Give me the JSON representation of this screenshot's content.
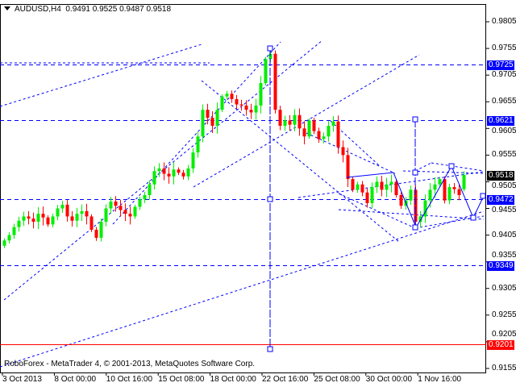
{
  "header": {
    "symbol": "AUDUSD,H4",
    "ohlc_text": "0.9491 0.9525 0.9487 0.9518"
  },
  "copyright": "RoboForex - MetaTrader 4, © 2001-2013, MetaQuotes Software Corp.",
  "colors": {
    "bull": "#00ee00",
    "bear": "#ff0000",
    "lines": "#0000ff",
    "support": "#ff0000",
    "current": "#000000"
  },
  "chart_data": {
    "type": "candlestick",
    "symbol": "AUDUSD",
    "timeframe": "H4",
    "ylim": [
      0.9145,
      0.983
    ],
    "y_ticks": [
      "0.9805",
      "0.9755",
      "0.9705",
      "0.9655",
      "0.9605",
      "0.9555",
      "0.9505",
      "0.9455",
      "0.9405",
      "0.9355",
      "0.9305",
      "0.9255",
      "0.9205",
      "0.9155"
    ],
    "x_ticks": [
      "3 Oct 2013",
      "8 Oct 00:00",
      "10 Oct 16:00",
      "15 Oct 08:00",
      "18 Oct 00:00",
      "22 Oct 16:00",
      "25 Oct 08:00",
      "30 Oct 00:00",
      "1 Nov 16:00"
    ],
    "last_candle": {
      "open": 0.9491,
      "high": 0.9525,
      "low": 0.9487,
      "close": 0.9518
    },
    "closes": [
      0.9395,
      0.9405,
      0.942,
      0.9432,
      0.944,
      0.9436,
      0.943,
      0.9445,
      0.9438,
      0.9425,
      0.944,
      0.9455,
      0.9462,
      0.944,
      0.9432,
      0.9445,
      0.945,
      0.944,
      0.9415,
      0.94,
      0.943,
      0.9455,
      0.9468,
      0.946,
      0.9452,
      0.9445,
      0.944,
      0.9458,
      0.9472,
      0.948,
      0.95,
      0.9525,
      0.953,
      0.952,
      0.9515,
      0.9528,
      0.9522,
      0.9515,
      0.953,
      0.956,
      0.959,
      0.964,
      0.9625,
      0.961,
      0.964,
      0.9665,
      0.967,
      0.966,
      0.965,
      0.9648,
      0.964,
      0.9635,
      0.9648,
      0.969,
      0.9735,
      0.9745,
      0.964,
      0.961,
      0.962,
      0.9612,
      0.963,
      0.9605,
      0.959,
      0.962,
      0.96,
      0.9585,
      0.959,
      0.961,
      0.9618,
      0.957,
      0.9555,
      0.951,
      0.949,
      0.95,
      0.9485,
      0.9465,
      0.9495,
      0.9505,
      0.949,
      0.95,
      0.9505,
      0.948,
      0.946,
      0.947,
      0.949,
      0.943,
      0.944,
      0.947,
      0.949,
      0.95,
      0.951,
      0.947,
      0.9495,
      0.9491,
      0.948,
      0.9518
    ],
    "levels": [
      {
        "label": "0.9725",
        "value": 0.9725,
        "color": "#0000ff"
      },
      {
        "label": "0.9621",
        "value": 0.9621,
        "color": "#0000ff"
      },
      {
        "label": "0.9518",
        "value": 0.9518,
        "color": "#000000"
      },
      {
        "label": "0.9472",
        "value": 0.9472,
        "color": "#0000ff"
      },
      {
        "label": "0.9349",
        "value": 0.9349,
        "color": "#0000ff"
      },
      {
        "label": "0.9201",
        "value": 0.9201,
        "color": "#ff0000"
      }
    ]
  }
}
